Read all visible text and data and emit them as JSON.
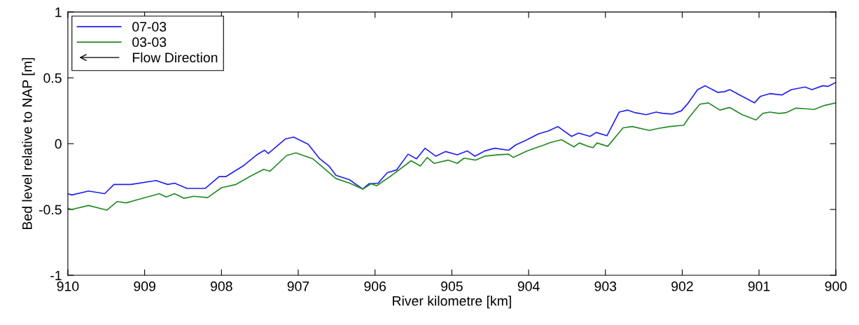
{
  "chart_data": {
    "type": "line",
    "xlabel": "River kilometre [km]",
    "ylabel": "Bed level relative to NAP [m]",
    "xlim": [
      910,
      900
    ],
    "xticks": [
      910,
      909,
      908,
      907,
      906,
      905,
      904,
      903,
      902,
      901,
      900
    ],
    "ylim": [
      -1,
      1
    ],
    "yticks": [
      -1,
      -0.5,
      0,
      0.5,
      1
    ],
    "grid": false,
    "legend": "top left",
    "line_style": "solid",
    "annotations": [
      "Flow Direction"
    ],
    "series": [
      {
        "name": "07-03",
        "color": "#2020f0",
        "x": [
          910,
          909.95,
          909.73,
          909.52,
          909.4,
          909.18,
          908.85,
          908.7,
          908.61,
          908.45,
          908.21,
          908.03,
          907.94,
          907.72,
          907.54,
          907.44,
          907.39,
          907.17,
          907.06,
          906.87,
          906.72,
          906.6,
          906.51,
          906.33,
          906.16,
          906.08,
          905.96,
          905.84,
          905.72,
          905.57,
          905.46,
          905.35,
          905.21,
          905.08,
          904.93,
          904.8,
          904.7,
          904.57,
          904.44,
          904.26,
          904.17,
          904.02,
          903.87,
          903.75,
          903.62,
          903.44,
          903.35,
          903.2,
          903.12,
          902.98,
          902.82,
          902.71,
          902.61,
          902.47,
          902.34,
          902.25,
          902.13,
          902.01,
          901.92,
          901.8,
          901.7,
          901.54,
          901.45,
          901.38,
          901.22,
          901.06,
          900.98,
          900.86,
          900.7,
          900.58,
          900.4,
          900.31,
          900.17,
          900.1,
          900
        ],
        "values": [
          -0.38,
          -0.39,
          -0.36,
          -0.38,
          -0.31,
          -0.31,
          -0.28,
          -0.31,
          -0.3,
          -0.34,
          -0.34,
          -0.25,
          -0.25,
          -0.17,
          -0.085,
          -0.05,
          -0.075,
          0.035,
          0.05,
          -0.005,
          -0.115,
          -0.17,
          -0.24,
          -0.275,
          -0.345,
          -0.305,
          -0.3,
          -0.22,
          -0.2,
          -0.08,
          -0.115,
          -0.035,
          -0.095,
          -0.06,
          -0.085,
          -0.055,
          -0.095,
          -0.055,
          -0.035,
          -0.05,
          -0.01,
          0.03,
          0.075,
          0.095,
          0.13,
          0.055,
          0.08,
          0.055,
          0.085,
          0.06,
          0.24,
          0.255,
          0.235,
          0.22,
          0.24,
          0.23,
          0.225,
          0.25,
          0.31,
          0.41,
          0.44,
          0.39,
          0.395,
          0.41,
          0.36,
          0.31,
          0.36,
          0.38,
          0.37,
          0.41,
          0.43,
          0.41,
          0.44,
          0.435,
          0.465
        ]
      },
      {
        "name": "03-03",
        "color": "#228b22",
        "x": [
          910,
          909.95,
          909.73,
          909.49,
          909.36,
          909.24,
          909.09,
          908.81,
          908.72,
          908.61,
          908.49,
          908.36,
          908.18,
          908.0,
          907.81,
          907.63,
          907.45,
          907.37,
          907.15,
          907.03,
          906.81,
          906.6,
          906.51,
          906.33,
          906.16,
          906.05,
          905.98,
          905.78,
          905.53,
          905.41,
          905.32,
          905.23,
          905.05,
          904.93,
          904.84,
          904.69,
          904.57,
          904.41,
          904.26,
          904.2,
          904.02,
          903.8,
          903.71,
          903.57,
          903.41,
          903.34,
          903.23,
          903.16,
          903.11,
          902.97,
          902.77,
          902.65,
          902.43,
          902.32,
          902.16,
          901.98,
          901.91,
          901.77,
          901.66,
          901.51,
          901.38,
          901.22,
          901.04,
          900.95,
          900.86,
          900.74,
          900.65,
          900.52,
          900.4,
          900.28,
          900.15,
          900
        ],
        "values": [
          -0.49,
          -0.5,
          -0.47,
          -0.505,
          -0.44,
          -0.45,
          -0.425,
          -0.38,
          -0.405,
          -0.38,
          -0.415,
          -0.4,
          -0.41,
          -0.335,
          -0.31,
          -0.25,
          -0.195,
          -0.21,
          -0.09,
          -0.07,
          -0.115,
          -0.22,
          -0.265,
          -0.3,
          -0.345,
          -0.305,
          -0.32,
          -0.24,
          -0.13,
          -0.17,
          -0.105,
          -0.15,
          -0.125,
          -0.15,
          -0.11,
          -0.125,
          -0.095,
          -0.085,
          -0.08,
          -0.105,
          -0.055,
          -0.01,
          0.01,
          0.03,
          -0.025,
          0.005,
          -0.02,
          -0.03,
          0.005,
          -0.02,
          0.12,
          0.13,
          0.1,
          0.115,
          0.13,
          0.14,
          0.2,
          0.3,
          0.31,
          0.255,
          0.275,
          0.22,
          0.18,
          0.23,
          0.24,
          0.23,
          0.235,
          0.27,
          0.265,
          0.26,
          0.29,
          0.31
        ]
      }
    ]
  }
}
